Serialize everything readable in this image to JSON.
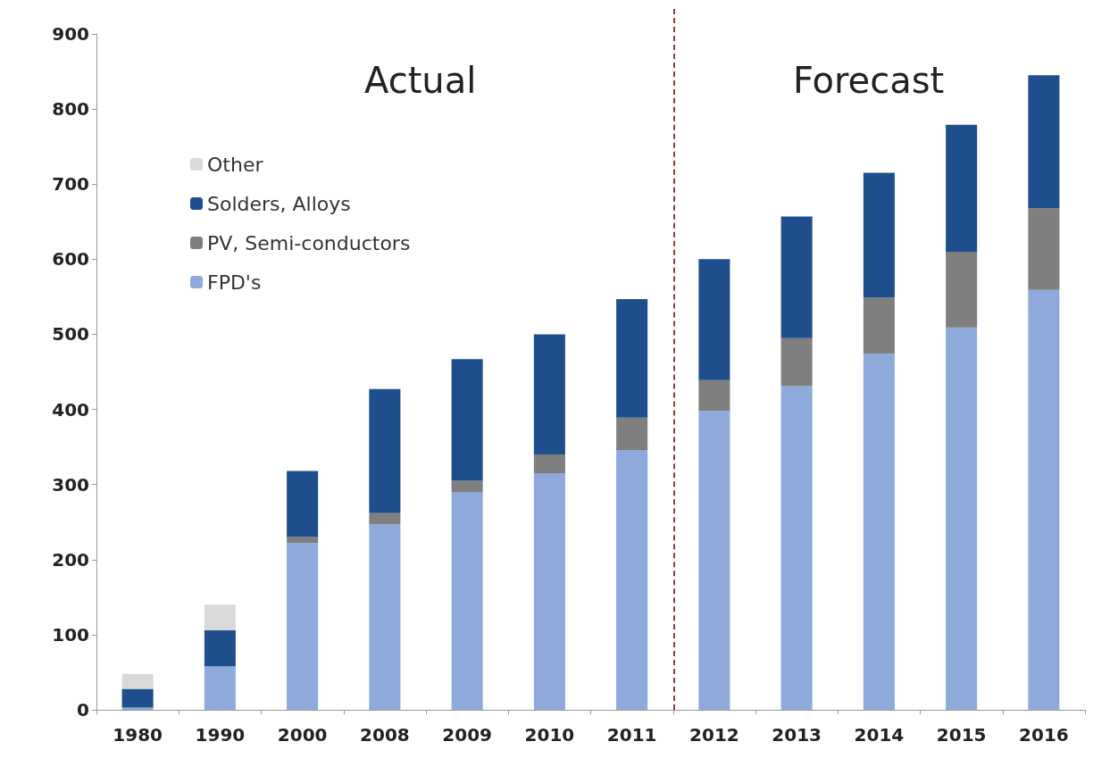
{
  "chart_data": {
    "type": "bar",
    "stacked": true,
    "categories": [
      "1980",
      "1990",
      "2000",
      "2008",
      "2009",
      "2010",
      "2011",
      "2012",
      "2013",
      "2014",
      "2015",
      "2016"
    ],
    "series": [
      {
        "name": "FPD's",
        "color": "#8eaadb",
        "values": [
          3,
          58,
          222,
          247,
          290,
          315,
          346,
          398,
          431,
          474,
          509,
          559
        ]
      },
      {
        "name": "PV, Semi-conductors",
        "color": "#7f7f7f",
        "values": [
          0,
          0,
          8,
          15,
          15,
          25,
          43,
          41,
          64,
          75,
          101,
          109
        ]
      },
      {
        "name": "Solders, Alloys",
        "color": "#1f4e8c",
        "values": [
          25,
          48,
          88,
          165,
          162,
          160,
          158,
          161,
          162,
          166,
          169,
          177
        ]
      },
      {
        "name": "Other",
        "color": "#d9d9d9",
        "values": [
          20,
          34,
          0,
          0,
          0,
          0,
          0,
          0,
          0,
          0,
          0,
          0
        ]
      }
    ],
    "ylim": [
      0,
      900
    ],
    "yticks": [
      0,
      100,
      200,
      300,
      400,
      500,
      600,
      700,
      800,
      900
    ],
    "grid": false,
    "legend": "top left",
    "ref_lines": [
      {
        "axis": "x",
        "value": "2012",
        "color": "#8b3a3a",
        "line_style": "dashed"
      }
    ],
    "annotations": [
      "Actual",
      "Forecast"
    ]
  }
}
